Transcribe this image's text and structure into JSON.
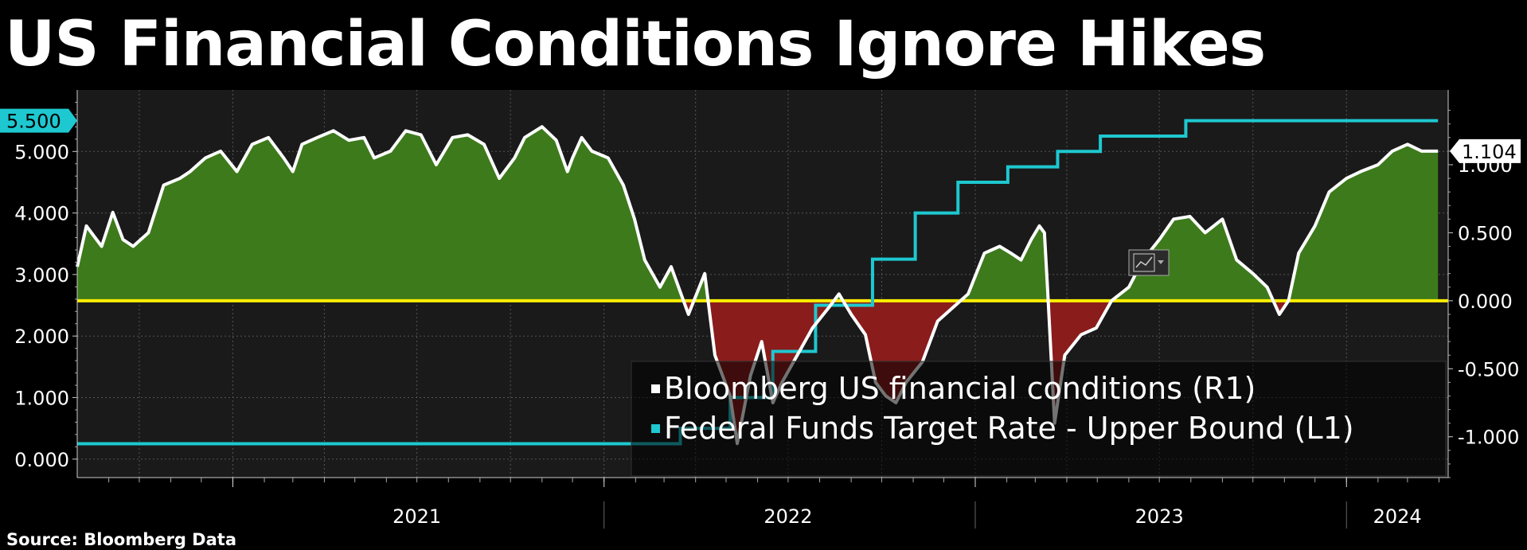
{
  "title": "US Financial Conditions Ignore Hikes",
  "source": "Source: Bloomberg Data",
  "colors": {
    "background": "#000000",
    "plot_background": "#1a1a1a",
    "fci_line": "#ffffff",
    "fci_positive_fill": "#3d7a1c",
    "fci_negative_fill": "#8a1c1c",
    "fed_funds_line": "#1ec8d0",
    "zero_line": "#ffee00",
    "grid": "#555555"
  },
  "chart_data": {
    "type": "line",
    "x_axis": {
      "tick_labels": [
        "2021",
        "2022",
        "2023",
        "2024"
      ]
    },
    "left_axis": {
      "series": "L1",
      "range": [
        -0.3,
        6.0
      ],
      "ticks": [
        "0.000",
        "1.000",
        "2.000",
        "3.000",
        "4.000",
        "5.000"
      ]
    },
    "right_axis": {
      "series": "R1",
      "range": [
        -1.3,
        1.55
      ],
      "ticks": [
        "-1.000",
        "-0.500",
        "0.000",
        "0.500",
        "1.000"
      ]
    },
    "grid": true,
    "legend": "bottom-center",
    "series": [
      {
        "name": "Federal Funds Target Rate - Upper Bound  (L1)",
        "axis": "left",
        "step": true,
        "last_value_label": "5.500",
        "x": [
          "2020-08-01",
          "2022-03-17",
          "2022-05-05",
          "2022-06-16",
          "2022-07-28",
          "2022-09-22",
          "2022-11-03",
          "2022-12-15",
          "2023-02-02",
          "2023-03-23",
          "2023-05-04",
          "2023-07-27",
          "2024-03-31"
        ],
        "values": [
          0.25,
          0.5,
          1.0,
          1.75,
          2.5,
          3.25,
          4.0,
          4.5,
          4.75,
          5.0,
          5.25,
          5.5,
          5.5
        ]
      },
      {
        "name": "Bloomberg US financial conditions (R1)",
        "axis": "right",
        "last_value_label": "1.104",
        "x": [
          "2020-08-01",
          "2020-08-10",
          "2020-08-25",
          "2020-09-05",
          "2020-09-15",
          "2020-09-25",
          "2020-10-10",
          "2020-10-25",
          "2020-11-10",
          "2020-11-20",
          "2020-12-05",
          "2020-12-20",
          "2021-01-05",
          "2021-01-20",
          "2021-02-05",
          "2021-02-20",
          "2021-03-01",
          "2021-03-10",
          "2021-03-25",
          "2021-04-10",
          "2021-04-25",
          "2021-05-10",
          "2021-05-20",
          "2021-06-05",
          "2021-06-20",
          "2021-07-05",
          "2021-07-20",
          "2021-08-05",
          "2021-08-20",
          "2021-09-05",
          "2021-09-20",
          "2021-10-05",
          "2021-10-15",
          "2021-11-01",
          "2021-11-15",
          "2021-11-26",
          "2021-12-01",
          "2021-12-10",
          "2021-12-20",
          "2022-01-05",
          "2022-01-20",
          "2022-01-31",
          "2022-02-10",
          "2022-02-25",
          "2022-03-08",
          "2022-03-25",
          "2022-04-10",
          "2022-04-20",
          "2022-05-05",
          "2022-05-12",
          "2022-05-25",
          "2022-06-05",
          "2022-06-16",
          "2022-06-25",
          "2022-07-10",
          "2022-07-25",
          "2022-08-10",
          "2022-08-20",
          "2022-09-01",
          "2022-09-15",
          "2022-09-25",
          "2022-10-05",
          "2022-10-15",
          "2022-10-25",
          "2022-11-10",
          "2022-11-25",
          "2022-12-10",
          "2022-12-25",
          "2023-01-10",
          "2023-01-25",
          "2023-02-05",
          "2023-02-15",
          "2023-02-25",
          "2023-03-05",
          "2023-03-10",
          "2023-03-13",
          "2023-03-20",
          "2023-03-30",
          "2023-04-15",
          "2023-04-30",
          "2023-05-15",
          "2023-06-01",
          "2023-06-15",
          "2023-07-01",
          "2023-07-15",
          "2023-07-31",
          "2023-08-15",
          "2023-09-01",
          "2023-09-15",
          "2023-10-01",
          "2023-10-15",
          "2023-10-27",
          "2023-11-05",
          "2023-11-15",
          "2023-12-01",
          "2023-12-15",
          "2024-01-01",
          "2024-01-15",
          "2024-02-01",
          "2024-02-15",
          "2024-03-01",
          "2024-03-15",
          "2024-03-31"
        ],
        "values": [
          0.25,
          0.55,
          0.4,
          0.65,
          0.45,
          0.4,
          0.5,
          0.85,
          0.9,
          0.95,
          1.05,
          1.1,
          0.95,
          1.15,
          1.2,
          1.05,
          0.95,
          1.15,
          1.2,
          1.25,
          1.18,
          1.2,
          1.05,
          1.1,
          1.25,
          1.22,
          1.0,
          1.2,
          1.22,
          1.15,
          0.9,
          1.05,
          1.2,
          1.28,
          1.18,
          0.95,
          1.05,
          1.2,
          1.1,
          1.05,
          0.85,
          0.6,
          0.3,
          0.1,
          0.25,
          -0.1,
          0.2,
          -0.4,
          -0.7,
          -1.05,
          -0.55,
          -0.3,
          -0.75,
          -0.6,
          -0.4,
          -0.2,
          -0.05,
          0.05,
          -0.1,
          -0.25,
          -0.6,
          -0.7,
          -0.75,
          -0.6,
          -0.45,
          -0.15,
          -0.05,
          0.05,
          0.35,
          0.4,
          0.35,
          0.3,
          0.45,
          0.55,
          0.5,
          0.1,
          -0.9,
          -0.4,
          -0.25,
          -0.2,
          0.0,
          0.1,
          0.3,
          0.45,
          0.6,
          0.62,
          0.5,
          0.6,
          0.3,
          0.2,
          0.1,
          -0.1,
          0.0,
          0.35,
          0.55,
          0.8,
          0.9,
          0.95,
          1.0,
          1.1,
          1.15,
          1.1,
          1.1
        ]
      }
    ]
  }
}
